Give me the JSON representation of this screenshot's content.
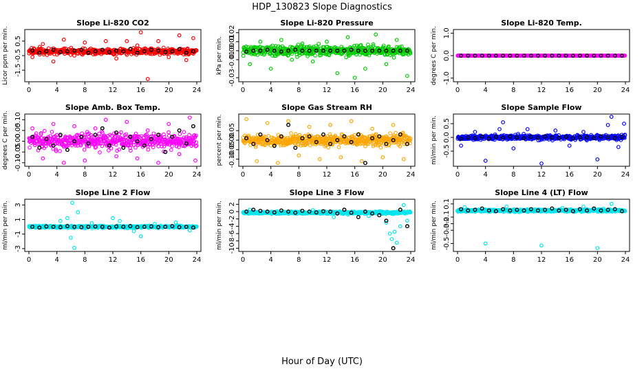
{
  "figure": {
    "title": "HDP_130823  Slope Diagnostics",
    "xlabel": "Hour of Day (UTC)"
  },
  "chart_data": [
    {
      "type": "scatter",
      "title": "Slope Li-820 CO2",
      "ylabel": "Licor ppm per min.",
      "color": "#ff0000",
      "xlim": [
        0,
        24
      ],
      "xticks": [
        0,
        4,
        8,
        12,
        16,
        20,
        24
      ],
      "ylim": [
        -2.2,
        1.2
      ],
      "yticks": [
        -1.5,
        -0.5,
        0.5
      ],
      "ytick_labels": [
        "-1.5",
        "-0.5",
        "0.5"
      ],
      "base": -0.2,
      "spread": 0.35,
      "series": [
        {
          "name": "scan",
          "x": [
            0.5,
            2.0,
            3.5,
            5.0,
            6.5,
            8.0,
            9.5,
            11.0,
            12.5,
            14.0,
            15.5,
            16.0,
            17.0,
            18.5,
            20.0,
            21.5,
            22.5,
            23.5
          ],
          "y": [
            -0.6,
            0.3,
            -0.9,
            0.6,
            -0.5,
            0.4,
            -0.4,
            0.5,
            -0.7,
            0.5,
            0.2,
            1.1,
            -2.1,
            0.5,
            -0.6,
            0.9,
            -0.8,
            0.7
          ]
        },
        {
          "name": "mean",
          "x": [
            0.5,
            1.5,
            2.5,
            3.5,
            4.5,
            5.5,
            6.5,
            7.5,
            8.5,
            9.5,
            10.5,
            11.5,
            12.5,
            13.5,
            14.5,
            15.5,
            16.5,
            17.5,
            18.5,
            19.5,
            20.5,
            21.5,
            22.5,
            23.5
          ],
          "y": [
            -0.15,
            -0.3,
            -0.2,
            -0.1,
            -0.25,
            -0.2,
            -0.15,
            -0.1,
            -0.3,
            -0.2,
            -0.1,
            -0.25,
            -0.15,
            -0.2,
            -0.05,
            -0.3,
            -0.2,
            -0.1,
            -0.15,
            -0.25,
            -0.2,
            -0.05,
            -0.3,
            -0.2
          ]
        }
      ]
    },
    {
      "type": "scatter",
      "title": "Slope Li-820 Pressure",
      "ylabel": "kPa per min.",
      "color": "#00cc00",
      "xlim": [
        0,
        24
      ],
      "xticks": [
        0,
        4,
        8,
        12,
        16,
        20,
        24
      ],
      "ylim": [
        -0.033,
        0.022
      ],
      "yticks": [
        -0.03,
        -0.01,
        0.0,
        0.01,
        0.02
      ],
      "ytick_labels": [
        "-0.03",
        "-0.01",
        "0.00",
        "0.01",
        "0.02"
      ],
      "base": 0.0,
      "spread": 0.009,
      "series": [
        {
          "name": "scan",
          "x": [
            1.0,
            2.5,
            4.0,
            5.5,
            7.0,
            8.5,
            10.0,
            12.0,
            13.5,
            15.0,
            16.0,
            17.5,
            19.0,
            20.5,
            22.0,
            23.5
          ],
          "y": [
            -0.015,
            0.01,
            -0.02,
            0.012,
            -0.01,
            0.008,
            -0.012,
            0.01,
            -0.025,
            0.015,
            -0.03,
            -0.02,
            0.018,
            -0.015,
            0.012,
            -0.028
          ]
        },
        {
          "name": "mean",
          "x": [
            0.5,
            1.5,
            2.5,
            3.5,
            4.5,
            5.5,
            6.5,
            7.5,
            8.5,
            9.5,
            10.5,
            11.5,
            12.5,
            13.5,
            14.5,
            15.5,
            16.5,
            17.5,
            18.5,
            19.5,
            20.5,
            21.5,
            22.5,
            23.5
          ],
          "y": [
            -0.001,
            0.0,
            0.0,
            0.001,
            0.0,
            -0.001,
            0.0,
            0.001,
            0.0,
            0.0,
            0.0,
            0.0,
            0.0,
            0.0,
            0.0,
            0.001,
            0.0,
            0.0,
            0.0,
            0.0,
            0.0,
            0.0,
            0.0,
            0.0
          ]
        }
      ]
    },
    {
      "type": "scatter",
      "title": "Slope Li-820 Temp.",
      "ylabel": "degrees C per min.",
      "color": "#ff00ff",
      "xlim": [
        0,
        24
      ],
      "xticks": [
        0,
        4,
        8,
        12,
        16,
        20,
        24
      ],
      "ylim": [
        -1.1,
        1.1
      ],
      "yticks": [
        -1.0,
        0.0,
        1.0
      ],
      "ytick_labels": [
        "-1.0",
        "0.0",
        "1.0"
      ],
      "base": 0.0,
      "spread": 0.005,
      "series": [
        {
          "name": "scan",
          "x": [
            0.5,
            3.0,
            6.0,
            9.0,
            12.0,
            15.0,
            18.0,
            21.0,
            23.5
          ],
          "y": [
            0.0,
            0.0,
            0.0,
            0.0,
            0.0,
            0.0,
            0.0,
            0.0,
            0.0
          ]
        },
        {
          "name": "mean",
          "x": [
            0.5,
            1.5,
            2.5,
            3.5,
            4.5,
            5.5,
            6.5,
            7.5,
            8.5,
            9.5,
            10.5,
            11.5,
            12.5,
            13.5,
            14.5,
            15.5,
            16.5,
            17.5,
            18.5,
            19.5,
            20.5,
            21.5,
            22.5,
            23.5
          ],
          "y": [
            0.0,
            0.0,
            0.0,
            0.0,
            0.0,
            0.0,
            0.0,
            0.0,
            0.0,
            0.0,
            0.0,
            0.0,
            0.0,
            0.0,
            0.0,
            0.0,
            0.0,
            0.0,
            0.0,
            0.0,
            0.0,
            0.0,
            0.0,
            0.0
          ]
        }
      ]
    },
    {
      "type": "scatter",
      "title": "Slope Amb. Box Temp.",
      "ylabel": "degrees C per min.",
      "color": "#ff00ff",
      "xlim": [
        0,
        24
      ],
      "xticks": [
        0,
        4,
        8,
        12,
        16,
        20,
        24
      ],
      "ylim": [
        -0.11,
        0.12
      ],
      "yticks": [
        -0.1,
        -0.05,
        0.0,
        0.05,
        0.1
      ],
      "ytick_labels": [
        "-0.10",
        "-0.05",
        "0.00",
        "0.05",
        "0.10"
      ],
      "base": 0.0,
      "spread": 0.06,
      "series": [
        {
          "name": "scan",
          "x": [
            0.5,
            2.0,
            3.5,
            5.0,
            6.5,
            8.0,
            9.5,
            11.0,
            12.5,
            14.0,
            15.5,
            17.0,
            18.5,
            20.0,
            21.5,
            23.0,
            23.8
          ],
          "y": [
            0.06,
            -0.08,
            0.08,
            -0.1,
            0.07,
            -0.09,
            0.06,
            0.1,
            -0.07,
            0.09,
            -0.08,
            0.05,
            -0.1,
            0.08,
            -0.06,
            0.11,
            -0.09
          ]
        },
        {
          "name": "mean",
          "x": [
            0.5,
            1.5,
            2.5,
            3.5,
            4.5,
            5.5,
            6.5,
            7.5,
            8.5,
            9.5,
            10.5,
            11.5,
            12.5,
            13.5,
            14.5,
            15.5,
            16.5,
            17.5,
            18.5,
            19.5,
            20.5,
            21.5,
            22.5,
            23.5
          ],
          "y": [
            0.02,
            -0.03,
            0.01,
            -0.02,
            0.03,
            -0.04,
            0.0,
            0.02,
            -0.01,
            0.03,
            0.06,
            -0.02,
            0.04,
            -0.03,
            0.02,
            0.0,
            -0.02,
            0.01,
            0.03,
            -0.05,
            0.02,
            0.05,
            -0.01,
            0.07
          ]
        }
      ]
    },
    {
      "type": "scatter",
      "title": "Slope Gas Stream RH",
      "ylabel": "percent per min.",
      "color": "#ffa500",
      "xlim": [
        0,
        24
      ],
      "xticks": [
        0,
        4,
        8,
        12,
        16,
        20,
        24
      ],
      "ylim": [
        -0.13,
        0.13
      ],
      "yticks": [
        -0.1,
        -0.05,
        0.0,
        0.05
      ],
      "ytick_labels": [
        "-0.10",
        "-0.05",
        "0.00",
        "0.05"
      ],
      "base": 0.0,
      "spread": 0.05,
      "series": [
        {
          "name": "scan",
          "x": [
            0.5,
            2.0,
            3.5,
            5.0,
            6.5,
            8.0,
            9.5,
            11.0,
            12.5,
            14.0,
            15.5,
            17.0,
            18.5,
            20.0,
            21.5,
            23.0
          ],
          "y": [
            0.11,
            -0.11,
            0.09,
            -0.12,
            0.1,
            -0.08,
            0.07,
            -0.1,
            0.08,
            -0.09,
            0.1,
            -0.11,
            0.06,
            -0.09,
            0.08,
            -0.1
          ]
        },
        {
          "name": "mean",
          "x": [
            0.5,
            1.5,
            2.5,
            3.5,
            4.5,
            5.5,
            6.5,
            7.5,
            8.5,
            9.5,
            10.5,
            11.5,
            12.5,
            13.5,
            14.5,
            15.5,
            16.5,
            17.5,
            18.5,
            19.5,
            20.5,
            21.5,
            22.5,
            23.5
          ],
          "y": [
            0.01,
            -0.02,
            0.03,
            0.0,
            -0.03,
            0.02,
            0.08,
            -0.04,
            0.01,
            0.02,
            -0.01,
            0.03,
            -0.02,
            0.0,
            0.02,
            -0.01,
            0.03,
            -0.12,
            0.01,
            0.02,
            -0.02,
            0.0,
            0.03,
            -0.02
          ]
        }
      ]
    },
    {
      "type": "scatter",
      "title": "Slope Sample Flow",
      "ylabel": "ml/min per min.",
      "color": "#0000ff",
      "xlim": [
        0,
        24
      ],
      "xticks": [
        0,
        4,
        8,
        12,
        16,
        20,
        24
      ],
      "ylim": [
        -1.0,
        0.8
      ],
      "yticks": [
        -0.5,
        0.0,
        0.5
      ],
      "ytick_labels": [
        "-0.5",
        "0.0",
        "0.5"
      ],
      "base": 0.0,
      "spread": 0.15,
      "series": [
        {
          "name": "scan",
          "x": [
            0.5,
            2.5,
            4.0,
            6.0,
            6.5,
            8.0,
            10.0,
            12.0,
            14.0,
            16.0,
            18.0,
            20.0,
            21.5,
            22.0,
            23.0,
            23.8
          ],
          "y": [
            -0.3,
            0.2,
            -0.85,
            0.3,
            0.55,
            -0.4,
            0.3,
            -0.95,
            0.25,
            -0.3,
            0.2,
            -0.8,
            0.45,
            0.75,
            -0.35,
            0.5
          ]
        },
        {
          "name": "mean",
          "x": [
            0.5,
            1.5,
            2.5,
            3.5,
            4.5,
            5.5,
            6.5,
            7.5,
            8.5,
            9.5,
            10.5,
            11.5,
            12.5,
            13.5,
            14.5,
            15.5,
            16.5,
            17.5,
            18.5,
            19.5,
            20.5,
            21.5,
            22.5,
            23.5
          ],
          "y": [
            -0.05,
            0.0,
            -0.02,
            0.03,
            -0.04,
            0.02,
            -0.01,
            0.03,
            0.0,
            -0.03,
            0.02,
            -0.01,
            0.03,
            0.0,
            -0.02,
            0.02,
            -0.03,
            0.01,
            0.0,
            -0.02,
            0.03,
            0.01,
            -0.02,
            0.02
          ]
        }
      ]
    },
    {
      "type": "scatter",
      "title": "Slope Line 2 Flow",
      "ylabel": "ml/min per min.",
      "color": "#00e5ee",
      "xlim": [
        0,
        24
      ],
      "xticks": [
        0,
        4,
        8,
        12,
        16,
        20,
        24
      ],
      "ylim": [
        -3.2,
        3.6
      ],
      "yticks": [
        -3,
        -1,
        1,
        3
      ],
      "ytick_labels": [
        "-3",
        "-1",
        "1",
        "3"
      ],
      "base": 0.0,
      "spread": 0.25,
      "series": [
        {
          "name": "scan",
          "x": [
            4.5,
            5.5,
            6.0,
            6.2,
            6.5,
            7.0,
            9.0,
            12.0,
            13.0,
            15.0,
            16.0,
            18.0,
            21.0,
            23.0
          ],
          "y": [
            0.8,
            1.2,
            -1.5,
            3.3,
            -2.9,
            2.0,
            0.5,
            1.2,
            0.8,
            -0.6,
            -1.3,
            0.4,
            0.6,
            -0.5
          ]
        },
        {
          "name": "mean",
          "x": [
            0.5,
            1.5,
            2.5,
            3.5,
            4.5,
            5.5,
            6.5,
            7.5,
            8.5,
            9.5,
            10.5,
            11.5,
            12.5,
            13.5,
            14.5,
            15.5,
            16.5,
            17.5,
            18.5,
            19.5,
            20.5,
            21.5,
            22.5,
            23.5
          ],
          "y": [
            0.0,
            -0.1,
            0.05,
            0.0,
            -0.05,
            0.1,
            0.0,
            -0.05,
            0.0,
            0.05,
            0.0,
            -0.1,
            0.05,
            0.0,
            0.1,
            -0.05,
            0.0,
            0.05,
            -0.05,
            0.0,
            0.1,
            -0.05,
            0.0,
            -0.1
          ]
        }
      ]
    },
    {
      "type": "scatter",
      "title": "Slope Line 3 Flow",
      "ylabel": "ml/min per min.",
      "color": "#00e5ee",
      "xlim": [
        0,
        24
      ],
      "xticks": [
        0,
        4,
        8,
        12,
        16,
        20,
        24
      ],
      "ylim": [
        -10.5,
        3.0
      ],
      "yticks": [
        -10,
        -8,
        -6,
        -4,
        -2,
        0,
        2
      ],
      "ytick_labels": [
        "-10",
        "-8",
        "-6",
        "-4",
        "-2",
        "0",
        "2"
      ],
      "base": -0.3,
      "spread": 0.5,
      "series": [
        {
          "name": "scan",
          "x": [
            1.0,
            5.0,
            10.0,
            13.0,
            15.0,
            18.0,
            20.0,
            20.5,
            21.0,
            21.3,
            21.7,
            22.0,
            22.5,
            23.0,
            23.5
          ],
          "y": [
            0.5,
            -0.5,
            0.4,
            -1.5,
            -0.8,
            -1.2,
            -0.6,
            -3.0,
            -6.0,
            -7.5,
            -5.5,
            -8.5,
            -4.0,
            1.8,
            -2.5
          ]
        },
        {
          "name": "mean",
          "x": [
            0.5,
            1.5,
            2.5,
            3.5,
            4.5,
            5.5,
            6.5,
            7.5,
            8.5,
            9.5,
            10.5,
            11.5,
            12.5,
            13.5,
            14.5,
            15.5,
            16.5,
            17.5,
            18.5,
            19.5,
            20.5,
            21.5,
            22.5,
            23.5
          ],
          "y": [
            0.0,
            0.5,
            0.2,
            0.0,
            -0.2,
            0.3,
            0.0,
            -0.3,
            0.2,
            0.0,
            -0.2,
            0.1,
            0.0,
            -0.5,
            0.5,
            -0.3,
            -1.5,
            0.0,
            -0.5,
            -1.0,
            -2.5,
            -10.0,
            0.5,
            -4.0
          ]
        }
      ]
    },
    {
      "type": "scatter",
      "title": "Slope Line 4 (LT) Flow",
      "ylabel": "ml/min per min.",
      "color": "#00e5ee",
      "xlim": [
        0,
        24
      ],
      "xticks": [
        0,
        4,
        8,
        12,
        16,
        20,
        24
      ],
      "ylim": [
        -0.6,
        0.15
      ],
      "yticks": [
        -0.5,
        -0.3,
        -0.2,
        -0.1,
        0.1
      ],
      "ytick_labels": [
        "-0.5",
        "-0.3",
        "-0.2",
        "-0.1",
        "0.1"
      ],
      "base": 0.0,
      "spread": 0.03,
      "series": [
        {
          "name": "scan",
          "x": [
            1.0,
            4.0,
            7.0,
            10.0,
            12.0,
            15.0,
            18.0,
            20.0,
            22.0
          ],
          "y": [
            0.05,
            -0.5,
            0.06,
            -0.02,
            -0.53,
            0.04,
            0.06,
            -0.57,
            0.1
          ]
        },
        {
          "name": "mean",
          "x": [
            0.5,
            1.5,
            2.5,
            3.5,
            4.5,
            5.5,
            6.5,
            7.5,
            8.5,
            9.5,
            10.5,
            11.5,
            12.5,
            13.5,
            14.5,
            15.5,
            16.5,
            17.5,
            18.5,
            19.5,
            20.5,
            21.5,
            22.5,
            23.5
          ],
          "y": [
            0.02,
            0.0,
            0.01,
            0.03,
            0.0,
            -0.01,
            0.02,
            0.0,
            0.01,
            0.0,
            0.02,
            0.0,
            0.01,
            0.03,
            0.0,
            0.01,
            -0.01,
            0.02,
            0.0,
            0.03,
            0.0,
            0.01,
            0.02,
            -0.01
          ]
        }
      ]
    }
  ]
}
